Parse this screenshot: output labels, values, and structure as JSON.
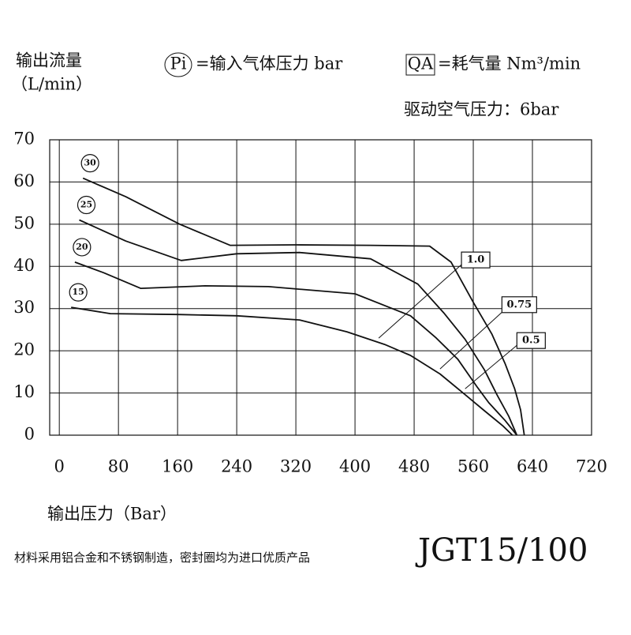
{
  "chart_data": {
    "type": "line",
    "y_title": "输出流量",
    "y_unit": "（L/min）",
    "legend_pi": "Pi",
    "legend_pi_text": "=输入气体压力 bar",
    "legend_qa": "QA",
    "legend_qa_text": "=耗气量 Nm³/min",
    "drive_pressure": "驱动空气压力：6bar",
    "x_title": "输出压力（Bar）",
    "footnote": "材料采用铝合金和不锈钢制造，密封圈均为进口优质产品",
    "model": "JGT15/100",
    "xlim": [
      -13,
      720
    ],
    "ylim": [
      0,
      70
    ],
    "xticks": [
      0,
      80,
      160,
      240,
      320,
      400,
      480,
      560,
      640,
      720
    ],
    "yticks": [
      0,
      10,
      20,
      30,
      40,
      50,
      60,
      70
    ],
    "grid": true,
    "color": "#111",
    "series": [
      {
        "name": "30",
        "x": [
          32,
          90,
          163,
          231,
          320,
          420,
          501,
          530,
          560,
          585,
          603,
          616,
          624,
          629
        ],
        "values": [
          60.9,
          56.5,
          50,
          45,
          45.1,
          45,
          44.8,
          41,
          31.5,
          24,
          17,
          11,
          6,
          0
        ]
      },
      {
        "name": "25",
        "x": [
          27,
          90,
          165,
          240,
          325,
          421,
          485,
          520,
          549,
          575,
          592,
          608,
          619
        ],
        "values": [
          51,
          46,
          41.4,
          43,
          43.3,
          41.8,
          35.8,
          29,
          22.7,
          15.5,
          9.6,
          4.5,
          0
        ]
      },
      {
        "name": "20",
        "x": [
          21,
          60,
          110,
          197,
          283,
          400,
          475,
          510,
          539,
          565,
          581,
          603,
          619
        ],
        "values": [
          41,
          38.5,
          34.8,
          35.4,
          35.2,
          33.5,
          28.3,
          23,
          18,
          11.5,
          7.7,
          3.5,
          0
        ]
      },
      {
        "name": "15",
        "x": [
          16,
          69,
          160,
          240,
          325,
          389,
          440,
          475,
          515,
          549,
          575,
          600,
          613
        ],
        "values": [
          30.3,
          28.8,
          28.6,
          28.3,
          27.3,
          24.5,
          21.5,
          18.9,
          14.5,
          9.6,
          5.8,
          2.2,
          0
        ]
      }
    ],
    "qa_lines": [
      {
        "name": "1.0",
        "x": [
          432,
          544
        ],
        "values": [
          23,
          40.4
        ]
      },
      {
        "name": "0.75",
        "x": [
          515,
          603
        ],
        "values": [
          15.7,
          29.8
        ]
      },
      {
        "name": "0.5",
        "x": [
          549,
          619
        ],
        "values": [
          11,
          21.3
        ]
      }
    ]
  }
}
